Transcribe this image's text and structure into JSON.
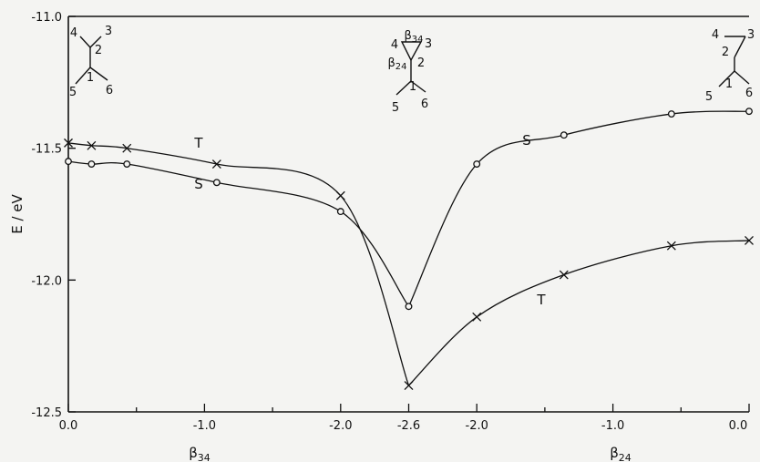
{
  "chart_data": {
    "type": "line",
    "ylabel": "E / eV",
    "ylim": [
      -12.5,
      -11.0
    ],
    "yticks": [
      "-11.0",
      "-11.5",
      "-12.0",
      "-12.5"
    ],
    "ytick_values": [
      -11.0,
      -11.5,
      -12.0,
      -12.5
    ],
    "x_positions": [
      0,
      0.5,
      1,
      1.5,
      2,
      2.5,
      3,
      3.5,
      4,
      4.5,
      5,
      5.5,
      6
    ],
    "xticks": [
      {
        "pos": 0,
        "label": "0.0"
      },
      {
        "pos": 1,
        "label": "-1.0"
      },
      {
        "pos": 2,
        "label": "-2.0"
      },
      {
        "pos": 2.5,
        "label": "-2.6"
      },
      {
        "pos": 3,
        "label": "-2.0"
      },
      {
        "pos": 4,
        "label": "-1.0"
      },
      {
        "pos": 5,
        "label": "0.0"
      }
    ],
    "xlabels": [
      {
        "text": "β34",
        "side": "left"
      },
      {
        "text": "β24",
        "side": "right"
      }
    ],
    "series": [
      {
        "name": "T",
        "marker": "x",
        "x": [
          0,
          0.17,
          0.43,
          1.09,
          2.0,
          2.5,
          3.0,
          3.64,
          4.43,
          5.0
        ],
        "y": [
          -11.48,
          -11.49,
          -11.5,
          -11.56,
          -11.68,
          -12.4,
          -12.14,
          -11.98,
          -11.87,
          -11.85
        ]
      },
      {
        "name": "S",
        "marker": "o",
        "x": [
          0,
          0.17,
          0.43,
          1.09,
          2.0,
          2.5,
          3.0,
          3.64,
          4.43,
          5.0
        ],
        "y": [
          -11.55,
          -11.56,
          -11.56,
          -11.63,
          -11.74,
          -12.1,
          -11.56,
          -11.45,
          -11.37,
          -11.36
        ]
      }
    ],
    "structures": [
      {
        "name": "left",
        "labels": [
          "4",
          "3",
          "2",
          "1",
          "5",
          "6"
        ]
      },
      {
        "name": "middle",
        "labels": [
          "β34",
          "4",
          "3",
          "β24",
          "2",
          "1",
          "5",
          "6"
        ]
      },
      {
        "name": "right",
        "labels": [
          "4",
          "3",
          "2",
          "1",
          "5",
          "6"
        ]
      }
    ]
  }
}
